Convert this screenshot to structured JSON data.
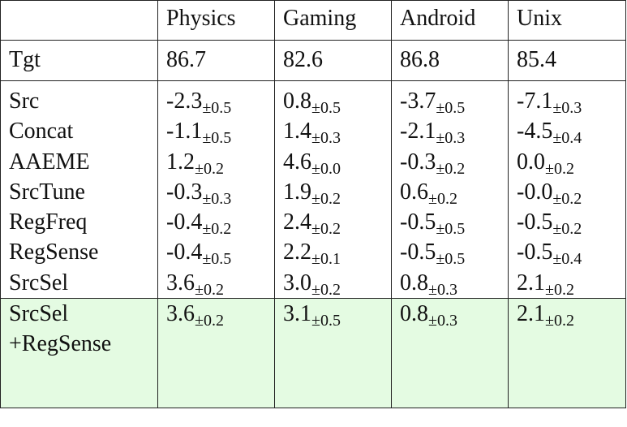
{
  "table": {
    "columns": [
      "",
      "Physics",
      "Gaming",
      "Android",
      "Unix"
    ],
    "tgt": {
      "label": "Tgt",
      "values": [
        "86.7",
        "82.6",
        "86.8",
        "85.4"
      ]
    },
    "rows": [
      {
        "label": "Src",
        "cells": [
          {
            "v": "-2.3",
            "s": "±0.5"
          },
          {
            "v": "0.8",
            "s": "±0.5"
          },
          {
            "v": "-3.7",
            "s": "±0.5"
          },
          {
            "v": "-7.1",
            "s": "±0.3"
          }
        ]
      },
      {
        "label": "Concat",
        "cells": [
          {
            "v": "-1.1",
            "s": "±0.5"
          },
          {
            "v": "1.4",
            "s": "±0.3"
          },
          {
            "v": "-2.1",
            "s": "±0.3"
          },
          {
            "v": "-4.5",
            "s": "±0.4"
          }
        ]
      },
      {
        "label": "AAEME",
        "cells": [
          {
            "v": "1.2",
            "s": "±0.2"
          },
          {
            "v": "4.6",
            "s": "±0.0"
          },
          {
            "v": "-0.3",
            "s": "±0.2"
          },
          {
            "v": "0.0",
            "s": "±0.2"
          }
        ]
      },
      {
        "label": "SrcTune",
        "cells": [
          {
            "v": "-0.3",
            "s": "±0.3"
          },
          {
            "v": "1.9",
            "s": "±0.2"
          },
          {
            "v": "0.6",
            "s": "±0.2"
          },
          {
            "v": "-0.0",
            "s": "±0.2"
          }
        ]
      },
      {
        "label": "RegFreq",
        "cells": [
          {
            "v": "-0.4",
            "s": "±0.2"
          },
          {
            "v": "2.4",
            "s": "±0.2"
          },
          {
            "v": "-0.5",
            "s": "±0.5"
          },
          {
            "v": "-0.5",
            "s": "±0.2"
          }
        ]
      },
      {
        "label": "RegSense",
        "cells": [
          {
            "v": "-0.4",
            "s": "±0.5"
          },
          {
            "v": "2.2",
            "s": "±0.1"
          },
          {
            "v": "-0.5",
            "s": "±0.5"
          },
          {
            "v": "-0.5",
            "s": "±0.4"
          }
        ]
      },
      {
        "label": "SrcSel",
        "cells": [
          {
            "v": "3.6",
            "s": "±0.2"
          },
          {
            "v": "3.0",
            "s": "±0.2"
          },
          {
            "v": "0.8",
            "s": "±0.3"
          },
          {
            "v": "2.1",
            "s": "±0.2"
          }
        ]
      }
    ],
    "highlight": {
      "label_line1": "SrcSel",
      "label_line2": "+RegSense",
      "color": "#e4fbe2",
      "cells": [
        {
          "v": "3.6",
          "s": "±0.2"
        },
        {
          "v": "3.1",
          "s": "±0.5"
        },
        {
          "v": "0.8",
          "s": "±0.3"
        },
        {
          "v": "2.1",
          "s": "±0.2"
        }
      ]
    }
  }
}
